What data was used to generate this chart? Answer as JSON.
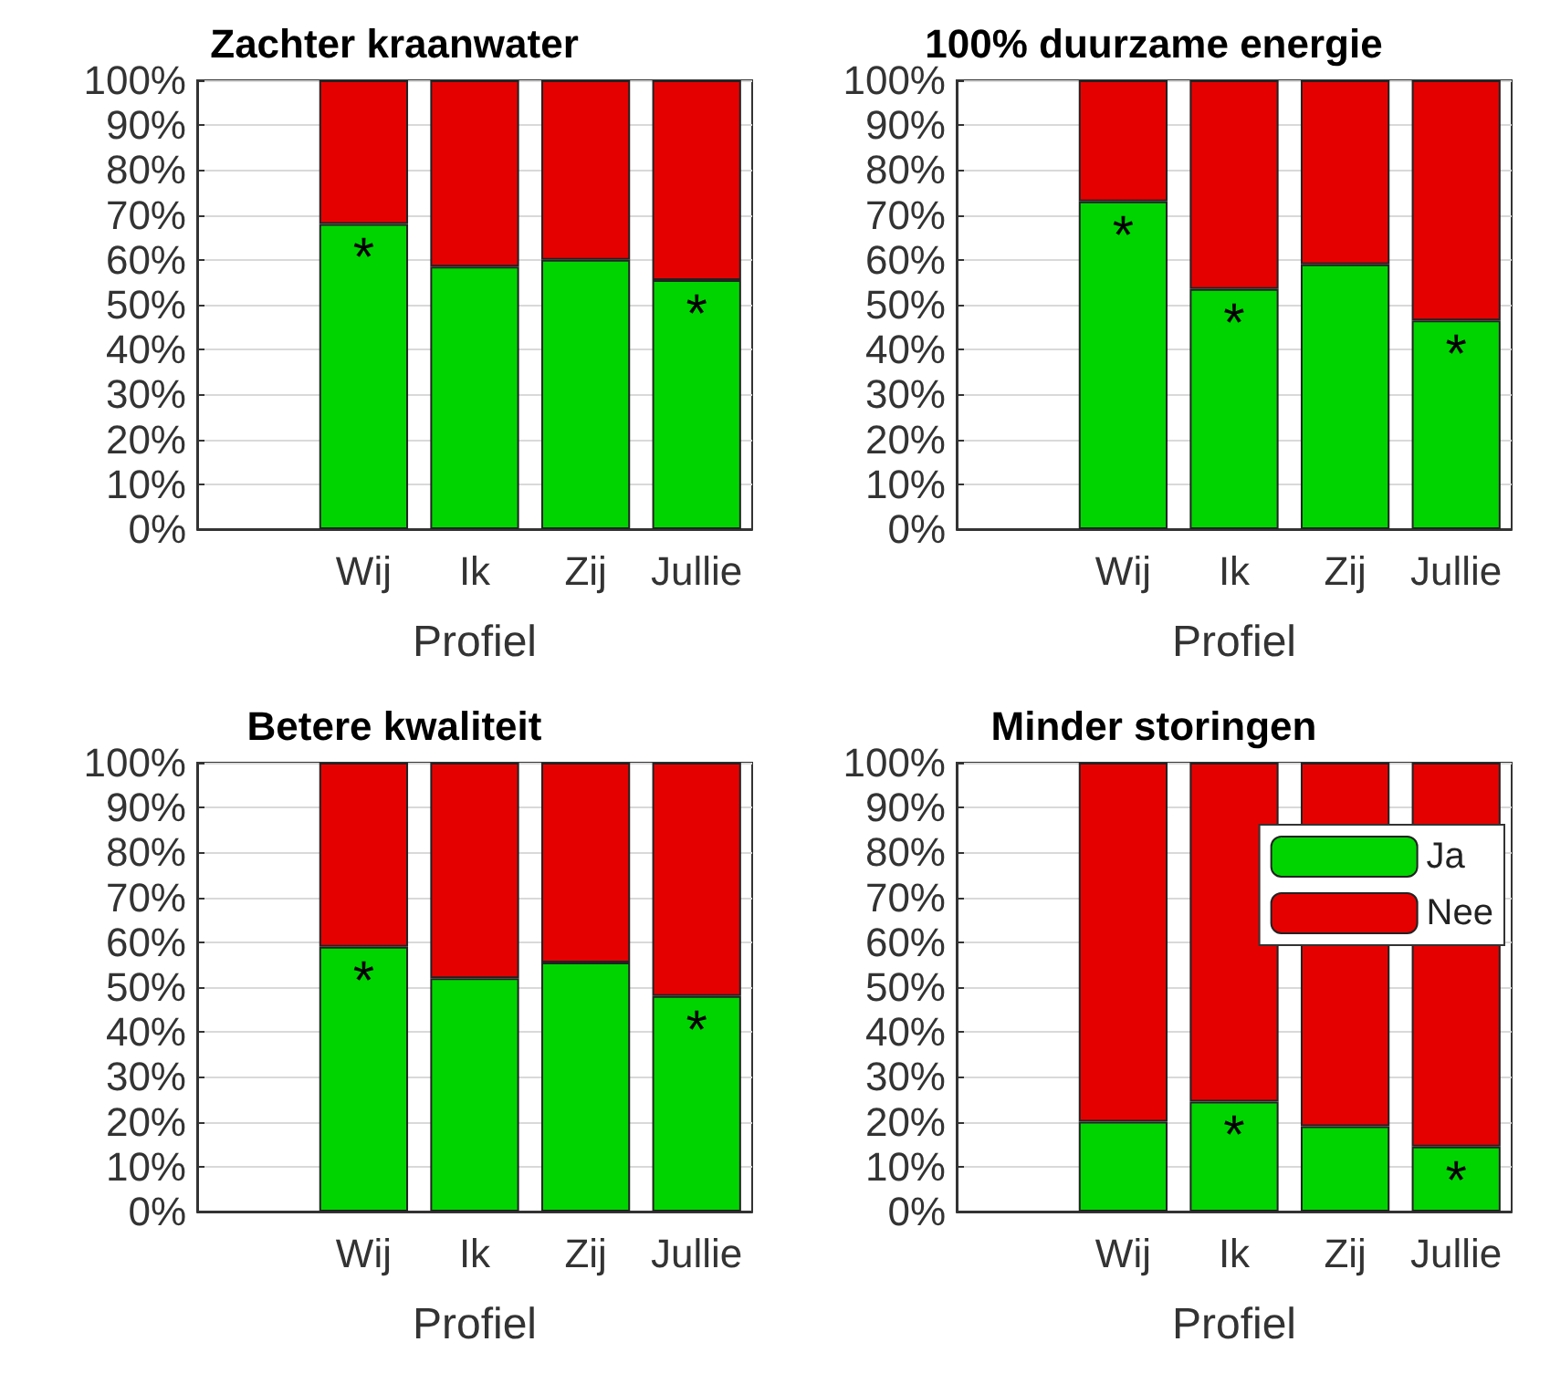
{
  "chart_data": [
    {
      "type": "bar",
      "title": "Zachter kraanwater",
      "xlabel": "Profiel",
      "categories": [
        null,
        "Wij",
        "Ik",
        "Zij",
        "Jullie"
      ],
      "stacked": true,
      "series": [
        {
          "color": "#00d400",
          "values": [
            null,
            68,
            58.5,
            60,
            55.5
          ]
        },
        {
          "color": "#e50000",
          "values": [
            null,
            32,
            41.5,
            40,
            44.5
          ]
        }
      ],
      "ylim": [
        0,
        100
      ],
      "yticks": [
        {
          "value": 0,
          "label": "0%"
        },
        {
          "value": 10,
          "label": "10%"
        },
        {
          "value": 20,
          "label": "20%"
        },
        {
          "value": 30,
          "label": "30%"
        },
        {
          "value": 40,
          "label": "40%"
        },
        {
          "value": 50,
          "label": "50%"
        },
        {
          "value": 60,
          "label": "60%"
        },
        {
          "value": 70,
          "label": "70%"
        },
        {
          "value": 80,
          "label": "80%"
        },
        {
          "value": 90,
          "label": "90%"
        },
        {
          "value": 100,
          "label": "100%"
        }
      ],
      "grid": "y",
      "legend": false,
      "annotations": [
        {
          "text": "*",
          "x": "Wij",
          "y": 68
        },
        {
          "text": "*",
          "x": "Jullie",
          "y": 55.5
        }
      ]
    },
    {
      "type": "bar",
      "title": "100% duurzame energie",
      "xlabel": "Profiel",
      "categories": [
        null,
        "Wij",
        "Ik",
        "Zij",
        "Jullie"
      ],
      "stacked": true,
      "series": [
        {
          "color": "#00d400",
          "values": [
            null,
            73,
            53.5,
            59,
            46.5
          ]
        },
        {
          "color": "#e50000",
          "values": [
            null,
            27,
            46.5,
            41,
            53.5
          ]
        }
      ],
      "ylim": [
        0,
        100
      ],
      "yticks": [
        {
          "value": 0,
          "label": "0%"
        },
        {
          "value": 10,
          "label": "10%"
        },
        {
          "value": 20,
          "label": "20%"
        },
        {
          "value": 30,
          "label": "30%"
        },
        {
          "value": 40,
          "label": "40%"
        },
        {
          "value": 50,
          "label": "50%"
        },
        {
          "value": 60,
          "label": "60%"
        },
        {
          "value": 70,
          "label": "70%"
        },
        {
          "value": 80,
          "label": "80%"
        },
        {
          "value": 90,
          "label": "90%"
        },
        {
          "value": 100,
          "label": "100%"
        }
      ],
      "grid": "y",
      "legend": false,
      "annotations": [
        {
          "text": "*",
          "x": "Wij",
          "y": 73
        },
        {
          "text": "*",
          "x": "Ik",
          "y": 53.5
        },
        {
          "text": "*",
          "x": "Jullie",
          "y": 46.5
        }
      ]
    },
    {
      "type": "bar",
      "title": "Betere kwaliteit",
      "xlabel": "Profiel",
      "categories": [
        null,
        "Wij",
        "Ik",
        "Zij",
        "Jullie"
      ],
      "stacked": true,
      "series": [
        {
          "color": "#00d400",
          "values": [
            null,
            59,
            52,
            55.5,
            48
          ]
        },
        {
          "color": "#e50000",
          "values": [
            null,
            41,
            48,
            44.5,
            52
          ]
        }
      ],
      "ylim": [
        0,
        100
      ],
      "yticks": [
        {
          "value": 0,
          "label": "0%"
        },
        {
          "value": 10,
          "label": "10%"
        },
        {
          "value": 20,
          "label": "20%"
        },
        {
          "value": 30,
          "label": "30%"
        },
        {
          "value": 40,
          "label": "40%"
        },
        {
          "value": 50,
          "label": "50%"
        },
        {
          "value": 60,
          "label": "60%"
        },
        {
          "value": 70,
          "label": "70%"
        },
        {
          "value": 80,
          "label": "80%"
        },
        {
          "value": 90,
          "label": "90%"
        },
        {
          "value": 100,
          "label": "100%"
        }
      ],
      "grid": "y",
      "legend": false,
      "annotations": [
        {
          "text": "*",
          "x": "Wij",
          "y": 59
        },
        {
          "text": "*",
          "x": "Jullie",
          "y": 48
        }
      ]
    },
    {
      "type": "bar",
      "title": "Minder storingen",
      "xlabel": "Profiel",
      "categories": [
        null,
        "Wij",
        "Ik",
        "Zij",
        "Jullie"
      ],
      "stacked": true,
      "series": [
        {
          "name": "Ja",
          "color": "#00d400",
          "values": [
            null,
            20,
            24.5,
            19,
            14.5
          ]
        },
        {
          "name": "Nee",
          "color": "#e50000",
          "values": [
            null,
            80,
            75.5,
            81,
            85.5
          ]
        }
      ],
      "ylim": [
        0,
        100
      ],
      "yticks": [
        {
          "value": 0,
          "label": "0%"
        },
        {
          "value": 10,
          "label": "10%"
        },
        {
          "value": 20,
          "label": "20%"
        },
        {
          "value": 30,
          "label": "30%"
        },
        {
          "value": 40,
          "label": "40%"
        },
        {
          "value": 50,
          "label": "50%"
        },
        {
          "value": 60,
          "label": "60%"
        },
        {
          "value": 70,
          "label": "70%"
        },
        {
          "value": 80,
          "label": "80%"
        },
        {
          "value": 90,
          "label": "90%"
        },
        {
          "value": 100,
          "label": "100%"
        }
      ],
      "grid": "y",
      "legend": "top right",
      "annotations": [
        {
          "text": "*",
          "x": "Ik",
          "y": 24.5
        },
        {
          "text": "*",
          "x": "Jullie",
          "y": 14.5
        }
      ]
    }
  ]
}
